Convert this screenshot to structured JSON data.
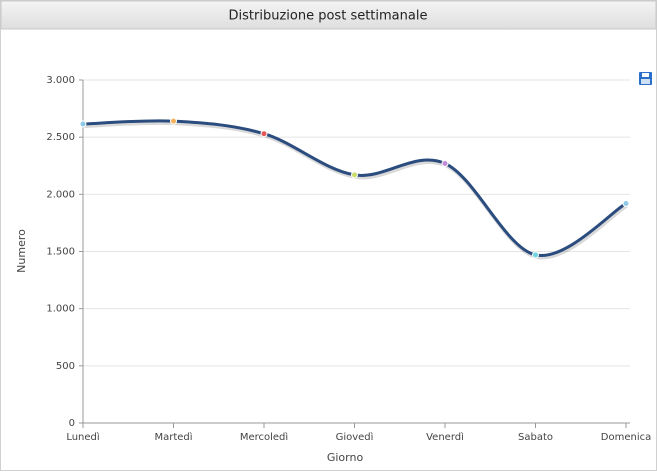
{
  "chart_data": {
    "type": "line",
    "title": "Distribuzione post settimanale",
    "x_label": "Giorno",
    "y_label": "Numero",
    "categories": [
      "Lunedì",
      "Martedì",
      "Mercoledì",
      "Giovedì",
      "Venerdì",
      "Sabato",
      "Domenica"
    ],
    "values": [
      2615,
      2640,
      2530,
      2170,
      2270,
      1470,
      1920
    ],
    "color": "#2b4c7e",
    "point_colors": [
      "#8fc9e8",
      "#f5b05a",
      "#e5585a",
      "#c8dc6a",
      "#c18ad8",
      "#6fd4e0",
      "#8fc9e8"
    ],
    "smooth": true,
    "ylim": [
      0,
      3000
    ],
    "yticks": [
      0,
      500,
      {
        "value": 1000,
        "label": "1.000"
      },
      {
        "value": 1500,
        "label": "1.500"
      },
      {
        "value": 2000,
        "label": "2.000"
      },
      {
        "value": 2500,
        "label": "2.500"
      },
      {
        "value": 3000,
        "label": "3.000"
      }
    ],
    "grid": true
  }
}
